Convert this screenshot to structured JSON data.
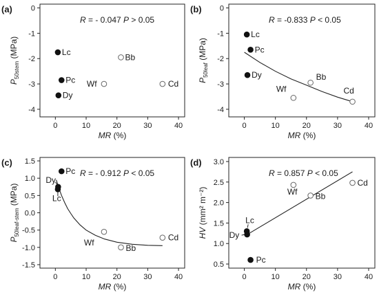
{
  "chart_data": [
    {
      "type": "scatter",
      "panel_label": "(a)",
      "ylabel_main": "P",
      "ylabel_sub": "50stem",
      "ylabel_unit": " (MPa)",
      "xlabel_main": "MR",
      "xlabel_unit": " (%)",
      "xlim": [
        -5,
        42
      ],
      "ylim": [
        -4.3,
        0.15
      ],
      "xticks": [
        0,
        10,
        20,
        30,
        40
      ],
      "yticks": [
        0,
        -1,
        -2,
        -3,
        -4
      ],
      "ytick_labels": [
        "0",
        "-1",
        "-2",
        "-3",
        "-4"
      ],
      "stat_r": "R = - 0.047",
      "stat_p": "P > 0.05",
      "points": [
        {
          "name": "Lc",
          "x": 0.8,
          "y": -1.75,
          "filled": true
        },
        {
          "name": "Pc",
          "x": 2.0,
          "y": -2.85,
          "filled": true
        },
        {
          "name": "Dy",
          "x": 1.0,
          "y": -3.45,
          "filled": true
        },
        {
          "name": "Bb",
          "x": 21.3,
          "y": -1.95,
          "filled": false
        },
        {
          "name": "Wf",
          "x": 15.8,
          "y": -3.0,
          "filled": false
        },
        {
          "name": "Cd",
          "x": 34.8,
          "y": -3.0,
          "filled": false
        }
      ],
      "fit": null
    },
    {
      "type": "scatter",
      "panel_label": "(b)",
      "ylabel_main": "P",
      "ylabel_sub": "50leaf",
      "ylabel_unit": " (MPa)",
      "xlabel_main": "MR",
      "xlabel_unit": " (%)",
      "xlim": [
        -5,
        42
      ],
      "ylim": [
        -4.3,
        0.15
      ],
      "xticks": [
        0,
        10,
        20,
        30,
        40
      ],
      "yticks": [
        0,
        -1,
        -2,
        -3,
        -4
      ],
      "ytick_labels": [
        "0",
        "-1",
        "-2",
        "-3",
        "-4"
      ],
      "stat_r": "R = -0.833",
      "stat_p": "P < 0.05",
      "points": [
        {
          "name": "Lc",
          "x": 0.8,
          "y": -1.05,
          "filled": true
        },
        {
          "name": "Pc",
          "x": 2.0,
          "y": -1.65,
          "filled": true
        },
        {
          "name": "Dy",
          "x": 1.0,
          "y": -2.65,
          "filled": true
        },
        {
          "name": "Bb",
          "x": 21.3,
          "y": -2.95,
          "filled": false
        },
        {
          "name": "Wf",
          "x": 15.8,
          "y": -3.55,
          "filled": false
        },
        {
          "name": "Cd",
          "x": 34.8,
          "y": -3.7,
          "filled": false
        }
      ],
      "fit": {
        "x": [
          0,
          5,
          10,
          15,
          20,
          25,
          30,
          34.8
        ],
        "y": [
          -1.75,
          -2.15,
          -2.5,
          -2.8,
          -3.05,
          -3.3,
          -3.52,
          -3.7
        ]
      }
    },
    {
      "type": "scatter",
      "panel_label": "(c)",
      "ylabel_main": "P",
      "ylabel_sub": "50leaf-stem",
      "ylabel_unit": " (MPa)",
      "xlabel_main": "MR",
      "xlabel_unit": " (%)",
      "xlim": [
        -5,
        42
      ],
      "ylim": [
        -1.6,
        1.6
      ],
      "xticks": [
        0,
        10,
        20,
        30,
        40
      ],
      "yticks": [
        1.5,
        1.0,
        0.5,
        0.0,
        -0.5,
        -1.0,
        -1.5
      ],
      "ytick_labels": [
        "1.5",
        "1.0",
        "0.5",
        "0.0",
        "-0.5",
        "-1.0",
        "-1.5"
      ],
      "stat_r": "R = - 0.912",
      "stat_p": "P < 0.05",
      "points": [
        {
          "name": "Pc",
          "x": 2.0,
          "y": 1.2,
          "filled": true
        },
        {
          "name": "Dy",
          "x": 0.9,
          "y": 0.75,
          "filled": true
        },
        {
          "name": "Lc",
          "x": 0.8,
          "y": 0.68,
          "filled": true
        },
        {
          "name": "Wf",
          "x": 15.8,
          "y": -0.55,
          "filled": false
        },
        {
          "name": "Bb",
          "x": 21.3,
          "y": -1.0,
          "filled": false
        },
        {
          "name": "Cd",
          "x": 34.8,
          "y": -0.72,
          "filled": false
        }
      ],
      "fit": {
        "x": [
          0.3,
          1,
          2,
          3,
          4,
          5,
          6,
          8,
          10,
          13,
          16,
          20,
          25,
          30,
          34.8
        ],
        "y": [
          0.95,
          0.75,
          0.5,
          0.3,
          0.12,
          -0.02,
          -0.15,
          -0.35,
          -0.5,
          -0.65,
          -0.76,
          -0.85,
          -0.91,
          -0.94,
          -0.95
        ]
      }
    },
    {
      "type": "scatter",
      "panel_label": "(d)",
      "ylabel_main": "HV",
      "ylabel_unit": " (mm² m⁻²)",
      "xlabel_main": "MR",
      "xlabel_unit": " (%)",
      "xlim": [
        -5,
        42
      ],
      "ylim": [
        0.4,
        3.1
      ],
      "xticks": [
        0,
        10,
        20,
        30,
        40
      ],
      "yticks": [
        3.0,
        2.5,
        2.0,
        1.5,
        1.0,
        0.5
      ],
      "ytick_labels": [
        "3.0",
        "2.5",
        "2.0",
        "1.5",
        "1.0",
        "0.5"
      ],
      "stat_r": "R = 0.857",
      "stat_p": "P < 0.05",
      "points": [
        {
          "name": "Lc",
          "x": 0.8,
          "y": 1.3,
          "filled": true
        },
        {
          "name": "Dy",
          "x": 0.9,
          "y": 1.22,
          "filled": true
        },
        {
          "name": "Pc",
          "x": 2.0,
          "y": 0.6,
          "filled": true
        },
        {
          "name": "Wf",
          "x": 15.8,
          "y": 2.43,
          "filled": false
        },
        {
          "name": "Bb",
          "x": 21.3,
          "y": 2.17,
          "filled": false
        },
        {
          "name": "Cd",
          "x": 34.8,
          "y": 2.48,
          "filled": false
        }
      ],
      "fit": {
        "x": [
          0.5,
          34.8
        ],
        "y": [
          1.2,
          2.75
        ]
      }
    }
  ]
}
